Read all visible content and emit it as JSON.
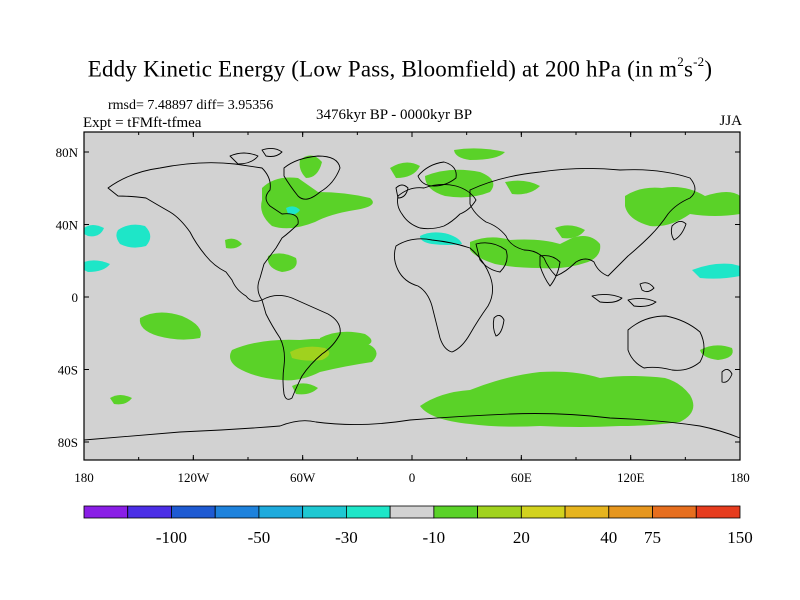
{
  "title": {
    "main": "Eddy Kinetic Energy (Low Pass, Bloomfield) at 200 hPa (in m",
    "sup1": "2",
    "mid": "s",
    "sup2": "-2",
    "end": ")"
  },
  "stats": "rmsd= 7.48897 diff= 3.95356",
  "period": "3476kyr BP - 0000kyr BP",
  "experiment": "Expt = tFMft-tfmea",
  "season": "JJA",
  "map": {
    "lon_ticks": [
      "180",
      "120W",
      "60W",
      "0",
      "60E",
      "120E",
      "180"
    ],
    "lat_ticks": [
      "80N",
      "40N",
      "0",
      "40S",
      "80S"
    ],
    "ocean_color": "#d2d2d2",
    "coast_color": "#000000"
  },
  "colorbar": {
    "colors": [
      "#8a1ee6",
      "#4b2ee6",
      "#1e5ad2",
      "#1e82dc",
      "#1eaadc",
      "#1ec8d2",
      "#1ee6c8",
      "#d2d2d2",
      "#5ad228",
      "#a0d21e",
      "#d2d21e",
      "#e6b41e",
      "#e6961e",
      "#e66e1e",
      "#e63c1e"
    ],
    "labels": [
      "-100",
      "-50",
      "-30",
      "-10",
      "20",
      "40",
      "75",
      "150"
    ]
  }
}
